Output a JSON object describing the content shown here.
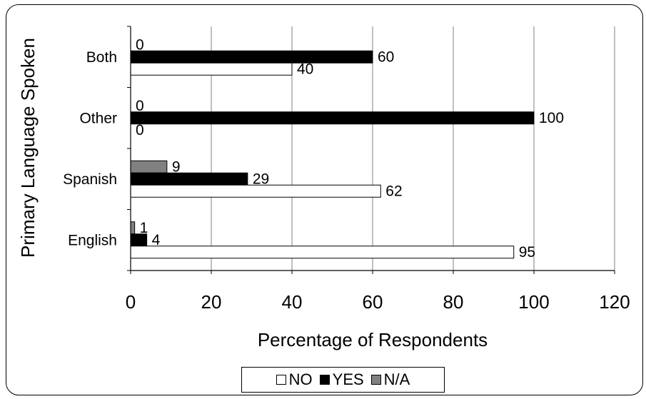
{
  "chart_data": {
    "type": "bar",
    "orientation": "horizontal",
    "categories": [
      "English",
      "Spanish",
      "Other",
      "Both"
    ],
    "series": [
      {
        "name": "NO",
        "values": [
          95,
          62,
          0,
          40
        ],
        "color": "#ffffff"
      },
      {
        "name": "YES",
        "values": [
          4,
          29,
          100,
          60
        ],
        "color": "#000000"
      },
      {
        "name": "N/A",
        "values": [
          1,
          9,
          0,
          0
        ],
        "color": "#808080"
      }
    ],
    "data_labels": {
      "English": {
        "NO": "95",
        "YES": "4",
        "N/A": "1"
      },
      "Spanish": {
        "NO": "62",
        "YES": "29",
        "N/A": "9"
      },
      "Other": {
        "NO": "0",
        "YES": "100",
        "N/A": "0"
      },
      "Both": {
        "NO": "40",
        "YES": "60",
        "N/A": "0"
      }
    },
    "xlabel": "Percentage of Respondents",
    "ylabel": "Primary Language Spoken",
    "xlim": [
      0,
      120
    ],
    "xticks": [
      "0",
      "20",
      "40",
      "60",
      "80",
      "100",
      "120"
    ],
    "grid": "vertical",
    "legend_position": "bottom"
  }
}
